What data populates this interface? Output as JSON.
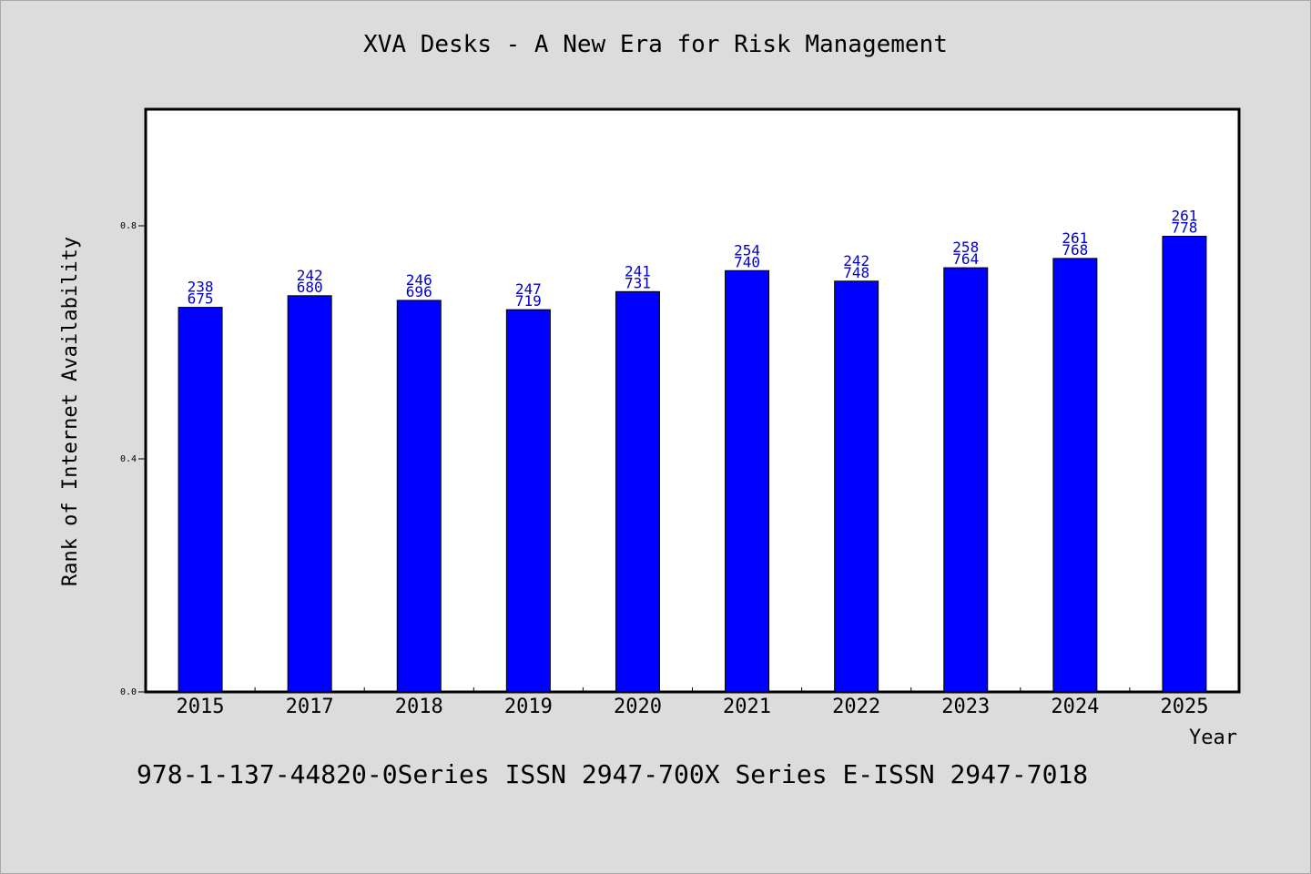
{
  "chart_data": {
    "type": "bar",
    "title": "XVA Desks - A New Era for Risk Management",
    "xlabel": "Year",
    "ylabel": "Rank of Internet Availability",
    "categories": [
      "2015",
      "2017",
      "2018",
      "2019",
      "2020",
      "2021",
      "2022",
      "2023",
      "2024",
      "2025"
    ],
    "series": [
      {
        "values": [
          0.66,
          0.68,
          0.672,
          0.656,
          0.687,
          0.723,
          0.705,
          0.728,
          0.744,
          0.782
        ]
      }
    ],
    "bar_labels_top": [
      "238",
      "242",
      "246",
      "247",
      "241",
      "254",
      "242",
      "258",
      "261",
      "261"
    ],
    "bar_labels_bottom": [
      "675",
      "680",
      "696",
      "719",
      "731",
      "740",
      "748",
      "764",
      "768",
      "778"
    ],
    "ylim": [
      0,
      1.0
    ],
    "yticks": [
      0.0,
      0.4,
      0.8
    ],
    "ytick_labels": [
      "0.0",
      "0.4",
      "0.8"
    ],
    "grid": false,
    "colors": {
      "bar": "#0000ff",
      "bar_label": "#0000cc",
      "background": "#dcdcdc",
      "plot_bg": "#ffffff"
    }
  },
  "footer": "978-1-137-44820-0Series ISSN 2947-700X Series E-ISSN 2947-7018"
}
